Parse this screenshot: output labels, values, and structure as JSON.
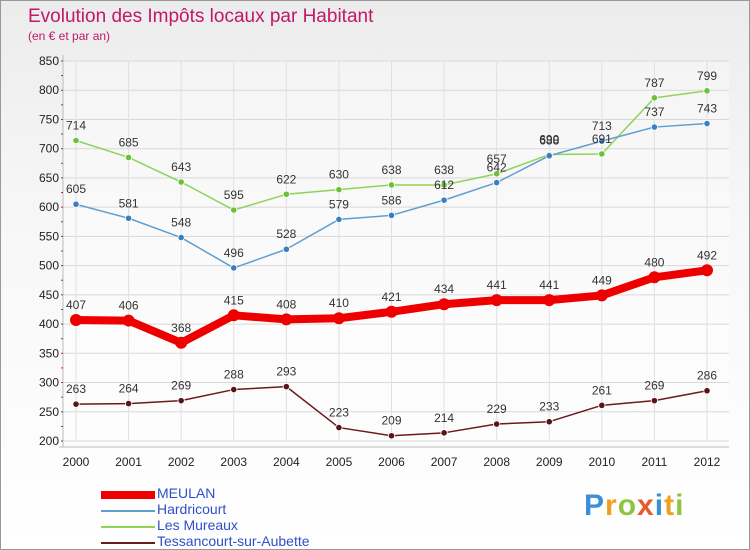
{
  "header": {
    "title": "Evolution des Impôts locaux par Habitant",
    "subtitle": "(en € et par an)"
  },
  "logo": {
    "text": "Proxiti",
    "letters": [
      {
        "ch": "P",
        "color": "#3a8fd8"
      },
      {
        "ch": "r",
        "color": "#f0a020"
      },
      {
        "ch": "o",
        "color": "#8cc63f"
      },
      {
        "ch": "x",
        "color": "#e85a2a"
      },
      {
        "ch": "i",
        "color": "#3a8fd8"
      },
      {
        "ch": "t",
        "color": "#f0a020"
      },
      {
        "ch": "i",
        "color": "#8cc63f"
      }
    ]
  },
  "chart_data": {
    "type": "line",
    "title": "Evolution des Impôts locaux par Habitant",
    "subtitle": "(en € et par an)",
    "x": [
      "2000",
      "2001",
      "2002",
      "2003",
      "2004",
      "2005",
      "2006",
      "2007",
      "2008",
      "2009",
      "2010",
      "2011",
      "2012"
    ],
    "ylim": [
      200,
      850
    ],
    "yticks": [
      200,
      250,
      300,
      350,
      400,
      450,
      500,
      550,
      600,
      650,
      700,
      750,
      800,
      850
    ],
    "grid": true,
    "legend_position": "bottom-left",
    "series": [
      {
        "name": "Tessancourt-sur-Aubette",
        "color": "#6b1a1e",
        "marker": "#5a1418",
        "values": [
          263,
          264,
          269,
          288,
          293,
          223,
          209,
          214,
          229,
          233,
          261,
          269,
          286
        ]
      },
      {
        "name": "Les Mureaux",
        "color": "#8ed357",
        "marker": "#6cc03a",
        "values": [
          714,
          685,
          643,
          595,
          622,
          630,
          638,
          638,
          657,
          690,
          691,
          787,
          799
        ]
      },
      {
        "name": "Hardricourt",
        "color": "#5f9ed1",
        "marker": "#3a80c0",
        "values": [
          605,
          581,
          548,
          496,
          528,
          579,
          586,
          612,
          642,
          688,
          713,
          737,
          743
        ]
      },
      {
        "name": "MEULAN",
        "color": "#ee0000",
        "marker": "#ee0000",
        "values": [
          407,
          406,
          368,
          415,
          408,
          410,
          421,
          434,
          441,
          441,
          449,
          480,
          492
        ]
      }
    ],
    "labels": [
      [
        263,
        264,
        269,
        288,
        293,
        223,
        209,
        214,
        229,
        233,
        261,
        269,
        286
      ],
      [
        714,
        685,
        643,
        595,
        622,
        630,
        638,
        638,
        657,
        690,
        691,
        787,
        799
      ],
      [
        605,
        581,
        548,
        496,
        528,
        579,
        586,
        612,
        642,
        688,
        713,
        737,
        743
      ],
      [
        407,
        406,
        368,
        415,
        408,
        410,
        421,
        434,
        441,
        441,
        449,
        480,
        492
      ]
    ]
  },
  "legend": [
    {
      "name": "MEULAN",
      "color": "#ee0000",
      "weight": "thick"
    },
    {
      "name": "Hardricourt",
      "color": "#5f9ed1",
      "weight": "thin"
    },
    {
      "name": "Les Mureaux",
      "color": "#8ed357",
      "weight": "thin"
    },
    {
      "name": "Tessancourt-sur-Aubette",
      "color": "#6b1a1e",
      "weight": "thin"
    }
  ]
}
